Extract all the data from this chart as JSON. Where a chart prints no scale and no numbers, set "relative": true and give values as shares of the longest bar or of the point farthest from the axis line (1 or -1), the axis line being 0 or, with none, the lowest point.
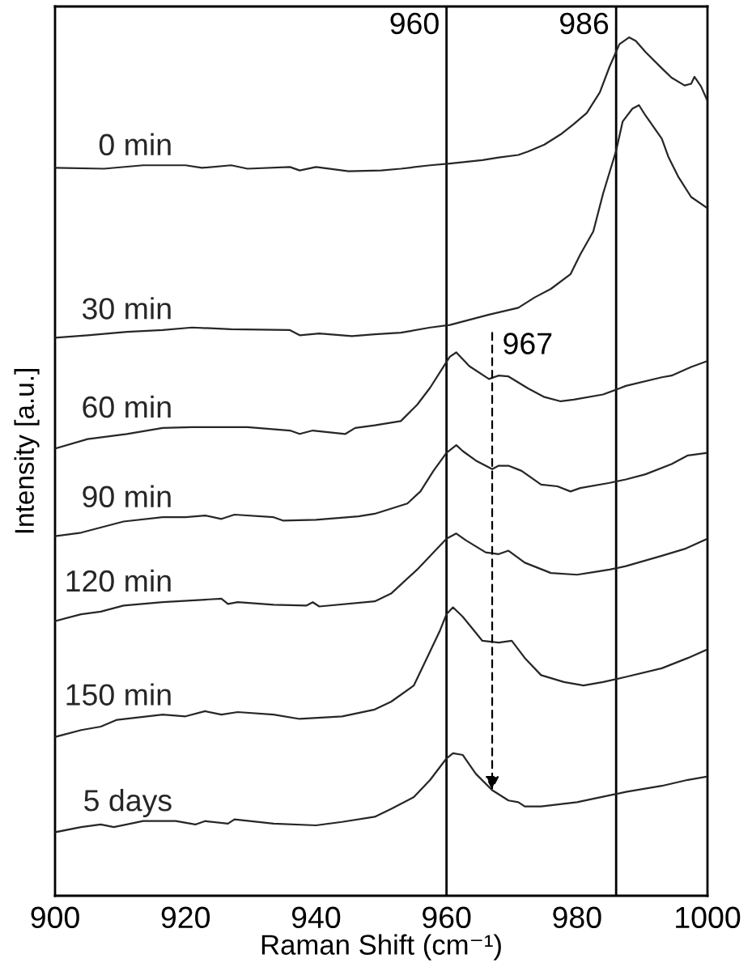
{
  "chart_data": {
    "type": "line",
    "relative": true,
    "xlabel": "Raman Shift (cm⁻¹)",
    "ylabel": "Intensity [a.u.]",
    "xlim": [
      900,
      1000
    ],
    "xticks": [
      900,
      920,
      940,
      960,
      980,
      1000
    ],
    "tick_labels": "x",
    "series": [
      {
        "name": "0 min",
        "color": "#262626",
        "x": [
          900,
          907.5,
          913.5,
          920,
          922.5,
          927,
          929.5,
          936,
          937.5,
          940,
          945,
          950,
          953,
          957.5,
          960.5,
          965.5,
          968,
          971,
          972.5,
          975,
          977.5,
          979.5,
          981.5,
          983.5,
          985,
          986.5,
          988,
          989,
          990.5,
          993,
          994.5,
          996.5,
          997.5,
          998,
          999,
          1000
        ],
        "values": [
          0.848,
          0.847,
          0.851,
          0.851,
          0.848,
          0.851,
          0.847,
          0.849,
          0.845,
          0.849,
          0.844,
          0.845,
          0.847,
          0.851,
          0.853,
          0.857,
          0.86,
          0.863,
          0.867,
          0.875,
          0.887,
          0.899,
          0.912,
          0.936,
          0.966,
          0.992,
          1.0,
          0.996,
          0.983,
          0.964,
          0.953,
          0.944,
          0.946,
          0.954,
          0.943,
          0.926
        ]
      },
      {
        "name": "30 min",
        "color": "#262626",
        "x": [
          900,
          905,
          911,
          916.5,
          921,
          927,
          936,
          937.5,
          940.5,
          945.5,
          949,
          953,
          957.5,
          960.5,
          966.5,
          971,
          973.5,
          976,
          979,
          980.5,
          982.5,
          984,
          986,
          987,
          988.5,
          989.5,
          990.5,
          993,
          994,
          995.5,
          997.5,
          1000
        ],
        "values": [
          0.65,
          0.653,
          0.657,
          0.659,
          0.662,
          0.66,
          0.659,
          0.653,
          0.655,
          0.652,
          0.654,
          0.656,
          0.662,
          0.665,
          0.677,
          0.685,
          0.697,
          0.707,
          0.724,
          0.747,
          0.774,
          0.818,
          0.868,
          0.902,
          0.917,
          0.921,
          0.909,
          0.882,
          0.861,
          0.838,
          0.814,
          0.801
        ]
      },
      {
        "name": "60 min",
        "color": "#262626",
        "x": [
          900,
          905,
          911,
          916.5,
          921,
          929.5,
          936,
          937.5,
          939.5,
          944.5,
          946,
          949,
          953,
          955.5,
          957.5,
          959.5,
          960.5,
          961.5,
          963.5,
          966.5,
          968,
          969.5,
          972.5,
          975,
          977.5,
          979.5,
          984,
          986.5,
          987.5,
          993,
          994.5,
          997.5,
          1000
        ],
        "values": [
          0.521,
          0.532,
          0.538,
          0.545,
          0.546,
          0.546,
          0.542,
          0.538,
          0.542,
          0.538,
          0.545,
          0.548,
          0.553,
          0.572,
          0.592,
          0.616,
          0.628,
          0.633,
          0.617,
          0.602,
          0.606,
          0.605,
          0.591,
          0.581,
          0.576,
          0.578,
          0.584,
          0.591,
          0.594,
          0.604,
          0.606,
          0.616,
          0.623
        ]
      },
      {
        "name": "90 min",
        "color": "#262626",
        "x": [
          900,
          904,
          910.5,
          916.5,
          920,
          923,
          925.5,
          927.5,
          933.5,
          935,
          940,
          946.5,
          949,
          954,
          956,
          958,
          960,
          961.5,
          962.5,
          964.5,
          967,
          968,
          969.5,
          971.5,
          974.5,
          977,
          979,
          980.5,
          985,
          987.5,
          990.5,
          994.5,
          997,
          1000
        ],
        "values": [
          0.419,
          0.423,
          0.436,
          0.441,
          0.441,
          0.443,
          0.439,
          0.444,
          0.441,
          0.437,
          0.438,
          0.442,
          0.445,
          0.457,
          0.471,
          0.495,
          0.516,
          0.525,
          0.518,
          0.507,
          0.497,
          0.501,
          0.501,
          0.495,
          0.479,
          0.477,
          0.471,
          0.475,
          0.481,
          0.485,
          0.491,
          0.503,
          0.513,
          0.516
        ]
      },
      {
        "name": "120 min",
        "color": "#262626",
        "x": [
          900,
          904,
          907,
          910.5,
          916.5,
          923,
          925.5,
          926.5,
          928,
          933.5,
          938.5,
          939.5,
          940.5,
          949,
          951.5,
          955.5,
          958,
          960,
          961.5,
          963,
          966,
          968,
          969.5,
          972,
          976,
          980,
          982.5,
          985,
          987.5,
          993,
          996.5,
          1000
        ],
        "values": [
          0.32,
          0.328,
          0.331,
          0.338,
          0.342,
          0.345,
          0.346,
          0.34,
          0.342,
          0.339,
          0.338,
          0.342,
          0.337,
          0.343,
          0.352,
          0.38,
          0.4,
          0.416,
          0.422,
          0.414,
          0.4,
          0.398,
          0.402,
          0.388,
          0.376,
          0.374,
          0.377,
          0.38,
          0.384,
          0.396,
          0.404,
          0.416
        ]
      },
      {
        "name": "150 min",
        "color": "#262626",
        "x": [
          900,
          904,
          907,
          909.5,
          916.5,
          920,
          923,
          925.5,
          928,
          933.5,
          937.5,
          944,
          949,
          951.5,
          955,
          957,
          959,
          960,
          961,
          962.5,
          965.5,
          968,
          970,
          972,
          974.5,
          978,
          981,
          984,
          987.5,
          993,
          997,
          1000
        ],
        "values": [
          0.185,
          0.193,
          0.197,
          0.205,
          0.211,
          0.209,
          0.215,
          0.211,
          0.214,
          0.211,
          0.206,
          0.209,
          0.217,
          0.226,
          0.245,
          0.277,
          0.309,
          0.328,
          0.336,
          0.325,
          0.297,
          0.295,
          0.297,
          0.277,
          0.257,
          0.249,
          0.245,
          0.249,
          0.255,
          0.265,
          0.277,
          0.287
        ]
      },
      {
        "name": "5 days",
        "color": "#262626",
        "x": [
          900,
          904,
          907,
          909,
          913.5,
          918.5,
          921.5,
          923,
          926.5,
          927.5,
          933.5,
          940,
          944,
          949,
          951.5,
          955,
          957.5,
          960,
          961,
          962.5,
          964.5,
          967,
          969.5,
          971,
          972,
          974.5,
          980,
          985,
          987.5,
          993,
          997,
          1000
        ],
        "values": [
          0.074,
          0.08,
          0.083,
          0.08,
          0.087,
          0.087,
          0.083,
          0.087,
          0.084,
          0.089,
          0.084,
          0.082,
          0.086,
          0.092,
          0.101,
          0.115,
          0.135,
          0.16,
          0.166,
          0.164,
          0.142,
          0.123,
          0.111,
          0.109,
          0.104,
          0.104,
          0.109,
          0.117,
          0.121,
          0.128,
          0.135,
          0.139
        ]
      }
    ],
    "ref_lines": [
      {
        "axis": "x",
        "value": 960,
        "label": "960"
      },
      {
        "axis": "x",
        "value": 986,
        "label": "986"
      }
    ],
    "annotations": [
      {
        "text": "967",
        "x": 967,
        "y": 0.123
      }
    ]
  }
}
